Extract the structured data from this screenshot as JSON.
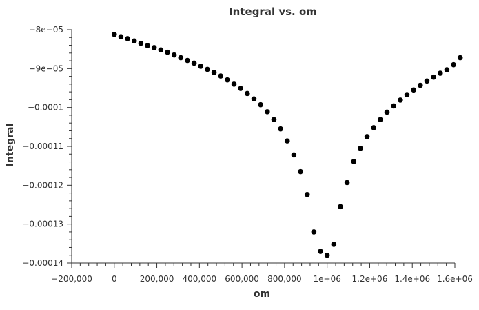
{
  "chart_data": {
    "type": "scatter",
    "title": "Integral vs. om",
    "xlabel": "om",
    "ylabel": "Integral",
    "xlim": [
      -200000,
      1600000
    ],
    "ylim": [
      -0.00014,
      -8e-05
    ],
    "x_ticks": [
      {
        "value": -200000,
        "label": "−200,000"
      },
      {
        "value": 0,
        "label": "0"
      },
      {
        "value": 200000,
        "label": "200,000"
      },
      {
        "value": 400000,
        "label": "400,000"
      },
      {
        "value": 600000,
        "label": "600,000"
      },
      {
        "value": 800000,
        "label": "800,000"
      },
      {
        "value": 1000000,
        "label": "1e+06"
      },
      {
        "value": 1200000,
        "label": "1.2e+06"
      },
      {
        "value": 1400000,
        "label": "1.4e+06"
      },
      {
        "value": 1600000,
        "label": "1.6e+06"
      }
    ],
    "y_ticks": [
      {
        "value": -8e-05,
        "label": "−8e−05"
      },
      {
        "value": -9e-05,
        "label": "−9e−05"
      },
      {
        "value": -0.0001,
        "label": "−0.0001"
      },
      {
        "value": -0.00011,
        "label": "−0.00011"
      },
      {
        "value": -0.00012,
        "label": "−0.00012"
      },
      {
        "value": -0.00013,
        "label": "−0.00013"
      },
      {
        "value": -0.00014,
        "label": "−0.00014"
      }
    ],
    "grid": false,
    "marker_color": "#000000",
    "series": [
      {
        "points": [
          [
            0,
            -8.12e-05
          ],
          [
            31250,
            -8.18e-05
          ],
          [
            62500,
            -8.23e-05
          ],
          [
            93750,
            -8.29e-05
          ],
          [
            125000,
            -8.35e-05
          ],
          [
            156250,
            -8.41e-05
          ],
          [
            187500,
            -8.46e-05
          ],
          [
            218750,
            -8.52e-05
          ],
          [
            250000,
            -8.58e-05
          ],
          [
            281250,
            -8.65e-05
          ],
          [
            312500,
            -8.72e-05
          ],
          [
            343750,
            -8.79e-05
          ],
          [
            375000,
            -8.86e-05
          ],
          [
            406250,
            -8.94e-05
          ],
          [
            437500,
            -9.02e-05
          ],
          [
            468750,
            -9.1e-05
          ],
          [
            500000,
            -9.19e-05
          ],
          [
            531250,
            -9.29e-05
          ],
          [
            562500,
            -9.4e-05
          ],
          [
            593750,
            -9.51e-05
          ],
          [
            625000,
            -9.64e-05
          ],
          [
            656250,
            -9.78e-05
          ],
          [
            687500,
            -9.93e-05
          ],
          [
            718750,
            -0.0001011
          ],
          [
            750000,
            -0.0001031
          ],
          [
            781250,
            -0.0001055
          ],
          [
            812500,
            -0.0001086
          ],
          [
            843750,
            -0.0001122
          ],
          [
            875000,
            -0.0001165
          ],
          [
            906250,
            -0.0001224
          ],
          [
            937500,
            -0.000132
          ],
          [
            968750,
            -0.000137
          ],
          [
            1000000,
            -0.000138
          ],
          [
            1031250,
            -0.0001352
          ],
          [
            1062500,
            -0.0001255
          ],
          [
            1093750,
            -0.0001193
          ],
          [
            1125000,
            -0.0001139
          ],
          [
            1156250,
            -0.0001105
          ],
          [
            1187500,
            -0.0001075
          ],
          [
            1218750,
            -0.0001052
          ],
          [
            1250000,
            -0.0001031
          ],
          [
            1281250,
            -0.0001012
          ],
          [
            1312500,
            -9.96e-05
          ],
          [
            1343750,
            -9.81e-05
          ],
          [
            1375000,
            -9.67e-05
          ],
          [
            1406250,
            -9.55e-05
          ],
          [
            1437500,
            -9.43e-05
          ],
          [
            1468750,
            -9.32e-05
          ],
          [
            1500000,
            -9.22e-05
          ],
          [
            1531250,
            -9.12e-05
          ],
          [
            1562500,
            -9.03e-05
          ],
          [
            1593750,
            -8.9e-05
          ],
          [
            1625000,
            -8.72e-05
          ]
        ]
      }
    ]
  }
}
